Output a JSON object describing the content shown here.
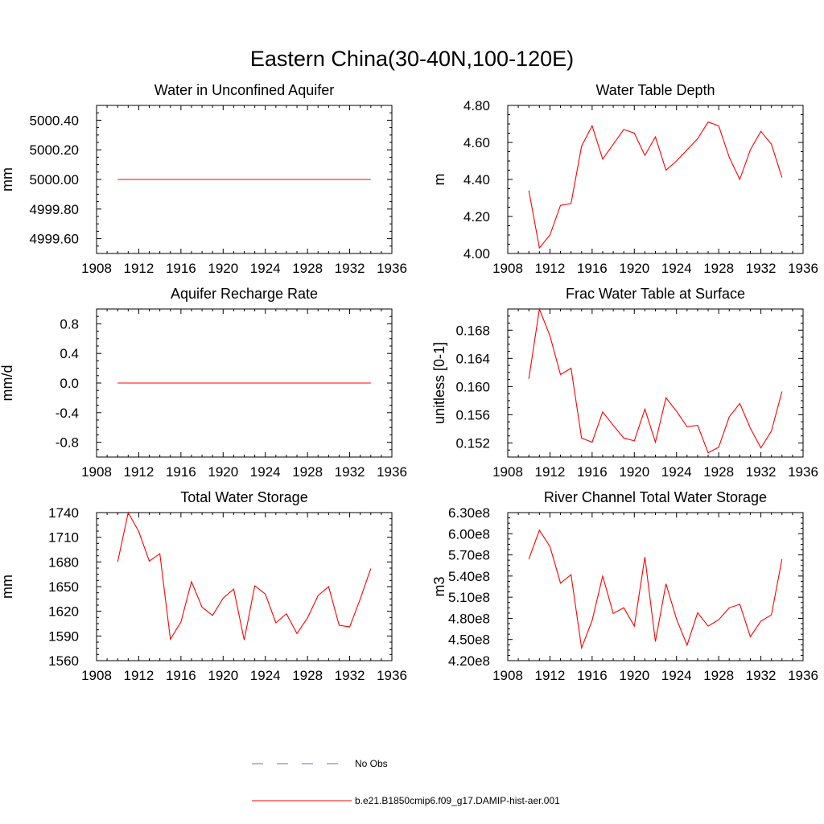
{
  "title": "Eastern China(30-40N,100-120E)",
  "colors": {
    "model": "#ff0000",
    "obs": "#6a6acd",
    "axis": "#000000"
  },
  "legend": [
    {
      "label": "No Obs",
      "style": "dashed",
      "color": "#6a6acd"
    },
    {
      "label": "b.e21.B1850cmip6.f09_g17.DAMIP-hist-aer.001",
      "style": "solid",
      "color": "#ff0000"
    }
  ],
  "chart_data": [
    {
      "type": "line",
      "title": "Water in Unconfined Aquifer",
      "ylabel": "mm",
      "xlim": [
        1908,
        1936
      ],
      "ylim": [
        4999.5,
        5000.5
      ],
      "x_ticks": [
        "1908",
        "1912",
        "1916",
        "1920",
        "1924",
        "1928",
        "1932",
        "1936"
      ],
      "y_ticks": [
        {
          "v": 4999.6,
          "label": "4999.60"
        },
        {
          "v": 4999.8,
          "label": "4999.80"
        },
        {
          "v": 5000.0,
          "label": "5000.00"
        },
        {
          "v": 5000.2,
          "label": "5000.20"
        },
        {
          "v": 5000.4,
          "label": "5000.40"
        }
      ],
      "x": [
        1910,
        1911,
        1912,
        1913,
        1914,
        1915,
        1916,
        1917,
        1918,
        1919,
        1920,
        1921,
        1922,
        1923,
        1924,
        1925,
        1926,
        1927,
        1928,
        1929,
        1930,
        1931,
        1932,
        1933,
        1934
      ],
      "series": [
        {
          "values": [
            5000,
            5000,
            5000,
            5000,
            5000,
            5000,
            5000,
            5000,
            5000,
            5000,
            5000,
            5000,
            5000,
            5000,
            5000,
            5000,
            5000,
            5000,
            5000,
            5000,
            5000,
            5000,
            5000,
            5000,
            5000
          ]
        }
      ]
    },
    {
      "type": "line",
      "title": "Water Table Depth",
      "ylabel": "m",
      "xlim": [
        1908,
        1936
      ],
      "ylim": [
        4.0,
        4.8
      ],
      "x_ticks": [
        "1908",
        "1912",
        "1916",
        "1920",
        "1924",
        "1928",
        "1932",
        "1936"
      ],
      "y_ticks": [
        {
          "v": 4.0,
          "label": "4.00"
        },
        {
          "v": 4.2,
          "label": "4.20"
        },
        {
          "v": 4.4,
          "label": "4.40"
        },
        {
          "v": 4.6,
          "label": "4.60"
        },
        {
          "v": 4.8,
          "label": "4.80"
        }
      ],
      "x": [
        1910,
        1911,
        1912,
        1913,
        1914,
        1915,
        1916,
        1917,
        1918,
        1919,
        1920,
        1921,
        1922,
        1923,
        1924,
        1925,
        1926,
        1927,
        1928,
        1929,
        1930,
        1931,
        1932,
        1933,
        1934
      ],
      "series": [
        {
          "values": [
            4.34,
            4.03,
            4.1,
            4.26,
            4.27,
            4.58,
            4.69,
            4.51,
            4.59,
            4.67,
            4.65,
            4.53,
            4.63,
            4.45,
            4.5,
            4.56,
            4.62,
            4.71,
            4.69,
            4.52,
            4.4,
            4.56,
            4.66,
            4.59,
            4.41
          ]
        }
      ]
    },
    {
      "type": "line",
      "title": "Aquifer Recharge Rate",
      "ylabel": "mm/d",
      "xlim": [
        1908,
        1936
      ],
      "ylim": [
        -1.0,
        1.0
      ],
      "x_ticks": [
        "1908",
        "1912",
        "1916",
        "1920",
        "1924",
        "1928",
        "1932",
        "1936"
      ],
      "y_ticks": [
        {
          "v": -0.8,
          "label": "-0.8"
        },
        {
          "v": -0.4,
          "label": "-0.4"
        },
        {
          "v": 0.0,
          "label": "0.0"
        },
        {
          "v": 0.4,
          "label": "0.4"
        },
        {
          "v": 0.8,
          "label": "0.8"
        }
      ],
      "x": [
        1910,
        1911,
        1912,
        1913,
        1914,
        1915,
        1916,
        1917,
        1918,
        1919,
        1920,
        1921,
        1922,
        1923,
        1924,
        1925,
        1926,
        1927,
        1928,
        1929,
        1930,
        1931,
        1932,
        1933,
        1934
      ],
      "series": [
        {
          "values": [
            0,
            0,
            0,
            0,
            0,
            0,
            0,
            0,
            0,
            0,
            0,
            0,
            0,
            0,
            0,
            0,
            0,
            0,
            0,
            0,
            0,
            0,
            0,
            0,
            0
          ]
        }
      ]
    },
    {
      "type": "line",
      "title": "Frac Water Table at Surface",
      "ylabel": "unitless [0-1]",
      "xlim": [
        1908,
        1936
      ],
      "ylim": [
        0.15,
        0.171
      ],
      "x_ticks": [
        "1908",
        "1912",
        "1916",
        "1920",
        "1924",
        "1928",
        "1932",
        "1936"
      ],
      "y_ticks": [
        {
          "v": 0.152,
          "label": "0.152"
        },
        {
          "v": 0.156,
          "label": "0.156"
        },
        {
          "v": 0.16,
          "label": "0.160"
        },
        {
          "v": 0.164,
          "label": "0.164"
        },
        {
          "v": 0.168,
          "label": "0.168"
        }
      ],
      "x": [
        1910,
        1911,
        1912,
        1913,
        1914,
        1915,
        1916,
        1917,
        1918,
        1919,
        1920,
        1921,
        1922,
        1923,
        1924,
        1925,
        1926,
        1927,
        1928,
        1929,
        1930,
        1931,
        1932,
        1933,
        1934
      ],
      "series": [
        {
          "values": [
            0.1611,
            0.171,
            0.1672,
            0.1617,
            0.1626,
            0.1527,
            0.1521,
            0.1564,
            0.1545,
            0.1527,
            0.1523,
            0.1568,
            0.1521,
            0.1584,
            0.1565,
            0.1543,
            0.1545,
            0.1506,
            0.1514,
            0.1557,
            0.1576,
            0.1541,
            0.1513,
            0.1537,
            0.1593
          ]
        }
      ]
    },
    {
      "type": "line",
      "title": "Total Water Storage",
      "ylabel": "mm",
      "xlim": [
        1908,
        1936
      ],
      "ylim": [
        1560,
        1740
      ],
      "x_ticks": [
        "1908",
        "1912",
        "1916",
        "1920",
        "1924",
        "1928",
        "1932",
        "1936"
      ],
      "y_ticks": [
        {
          "v": 1560,
          "label": "1560"
        },
        {
          "v": 1590,
          "label": "1590"
        },
        {
          "v": 1620,
          "label": "1620"
        },
        {
          "v": 1650,
          "label": "1650"
        },
        {
          "v": 1680,
          "label": "1680"
        },
        {
          "v": 1710,
          "label": "1710"
        },
        {
          "v": 1740,
          "label": "1740"
        }
      ],
      "x": [
        1910,
        1911,
        1912,
        1913,
        1914,
        1915,
        1916,
        1917,
        1918,
        1919,
        1920,
        1921,
        1922,
        1923,
        1924,
        1925,
        1926,
        1927,
        1928,
        1929,
        1930,
        1931,
        1932,
        1933,
        1934
      ],
      "series": [
        {
          "values": [
            1680,
            1740,
            1717,
            1681,
            1690,
            1586,
            1607,
            1656,
            1625,
            1615,
            1636,
            1647,
            1585,
            1651,
            1641,
            1606,
            1617,
            1593,
            1612,
            1639,
            1650,
            1603,
            1601,
            1635,
            1672
          ]
        }
      ]
    },
    {
      "type": "line",
      "title": "River Channel Total Water Storage",
      "ylabel": "m3",
      "xlim": [
        1908,
        1936
      ],
      "ylim": [
        420000000,
        630000000
      ],
      "x_ticks": [
        "1908",
        "1912",
        "1916",
        "1920",
        "1924",
        "1928",
        "1932",
        "1936"
      ],
      "y_ticks": [
        {
          "v": 420000000,
          "label": "4.20e8"
        },
        {
          "v": 450000000,
          "label": "4.50e8"
        },
        {
          "v": 480000000,
          "label": "4.80e8"
        },
        {
          "v": 510000000,
          "label": "5.10e8"
        },
        {
          "v": 540000000,
          "label": "5.40e8"
        },
        {
          "v": 570000000,
          "label": "5.70e8"
        },
        {
          "v": 600000000,
          "label": "6.00e8"
        },
        {
          "v": 630000000,
          "label": "6.30e8"
        }
      ],
      "x": [
        1910,
        1911,
        1912,
        1913,
        1914,
        1915,
        1916,
        1917,
        1918,
        1919,
        1920,
        1921,
        1922,
        1923,
        1924,
        1925,
        1926,
        1927,
        1928,
        1929,
        1930,
        1931,
        1932,
        1933,
        1934
      ],
      "series": [
        {
          "values": [
            564000000,
            605000000,
            582000000,
            530000000,
            542000000,
            438000000,
            477000000,
            540000000,
            487000000,
            495000000,
            469000000,
            567000000,
            447000000,
            529000000,
            479000000,
            442000000,
            488000000,
            469000000,
            478000000,
            495000000,
            500000000,
            454000000,
            476000000,
            485000000,
            564000000
          ]
        }
      ]
    }
  ]
}
